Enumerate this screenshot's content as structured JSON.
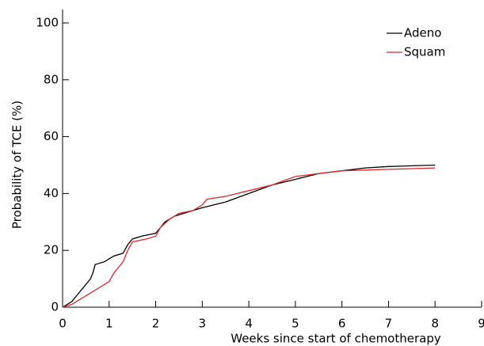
{
  "chart_data": {
    "type": "line",
    "xlabel": "Weeks since start of chemotherapy",
    "ylabel": "Probability of TCE (%)",
    "xlim": [
      0,
      9
    ],
    "xticks": [
      0,
      1,
      2,
      3,
      4,
      5,
      6,
      7,
      8,
      9
    ],
    "ylim": [
      0,
      100
    ],
    "yticks": [
      0,
      20,
      40,
      60,
      80,
      100
    ],
    "legend": "upper right",
    "series": [
      {
        "name": "Adeno",
        "color": "#000000",
        "x": [
          0,
          0.1,
          0.2,
          0.3,
          0.4,
          0.5,
          0.6,
          0.65,
          0.7,
          0.9,
          1.0,
          1.1,
          1.3,
          1.4,
          1.5,
          1.7,
          2.0,
          2.1,
          2.2,
          2.4,
          2.6,
          3.0,
          3.5,
          4.0,
          4.5,
          5.0,
          5.5,
          6.0,
          6.5,
          7.0,
          8.0
        ],
        "values": [
          0,
          1,
          2,
          4,
          6,
          8,
          10,
          12,
          15,
          16,
          17,
          18,
          19,
          22,
          24,
          25,
          26,
          28,
          30,
          32,
          33,
          35,
          37,
          40,
          43,
          45,
          47,
          48,
          49,
          49.5,
          50
        ]
      },
      {
        "name": "Squam",
        "color": "#e0262b",
        "x": [
          0,
          0.2,
          0.4,
          0.6,
          0.8,
          1.0,
          1.1,
          1.2,
          1.3,
          1.4,
          1.5,
          1.8,
          2.0,
          2.1,
          2.3,
          2.5,
          2.8,
          3.0,
          3.1,
          3.5,
          4.0,
          4.5,
          5.0,
          6.0,
          7.0,
          8.0
        ],
        "values": [
          0,
          1,
          3,
          5,
          7,
          9,
          12,
          14,
          16,
          20,
          23,
          24,
          25,
          28,
          31,
          33,
          34,
          36,
          38,
          39,
          41,
          43,
          46,
          48,
          48.5,
          49
        ]
      }
    ]
  }
}
